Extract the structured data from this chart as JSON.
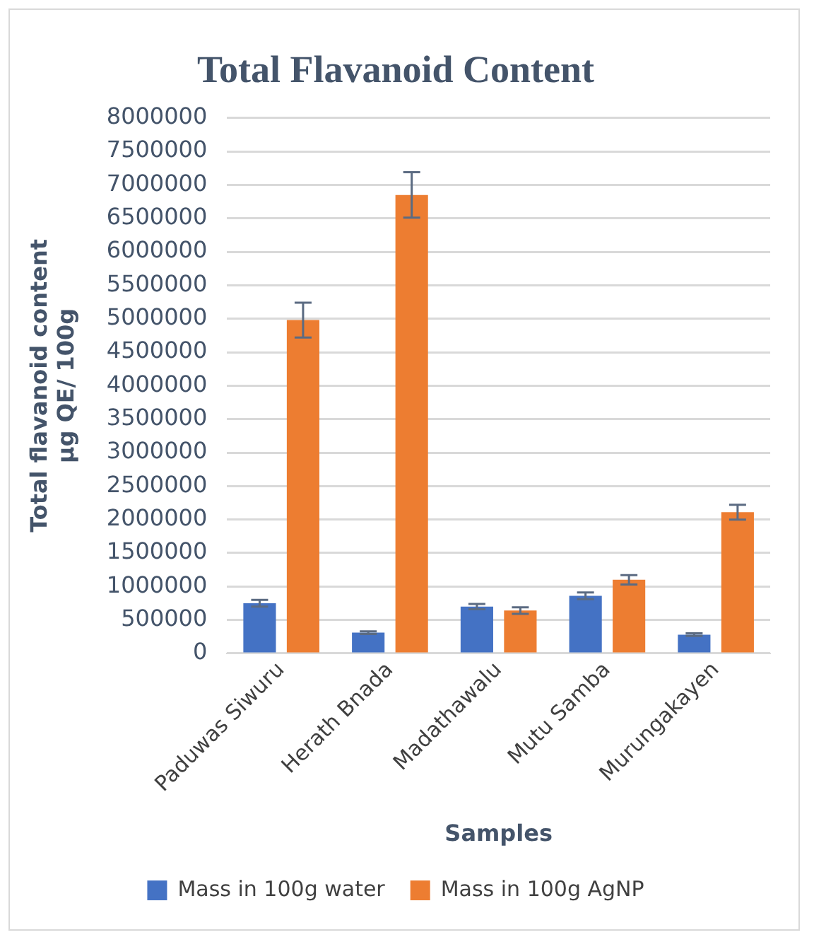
{
  "chart_data": {
    "type": "bar",
    "title": "Total Flavanoid Content",
    "xlabel": "Samples",
    "ylabel": "Total flavanoid content\nµg QE/ 100g",
    "categories": [
      "Paduwas Siwuru",
      "Herath Bnada",
      "Madathawalu",
      "Mutu Samba",
      "Murungakayen"
    ],
    "series": [
      {
        "name": "Mass in 100g water",
        "color": "#4472c4",
        "values": [
          750000,
          310000,
          700000,
          860000,
          280000
        ],
        "errors": [
          50000,
          20000,
          40000,
          50000,
          20000
        ]
      },
      {
        "name": "Mass in 100g AgNP",
        "color": "#ed7d31",
        "values": [
          4980000,
          6850000,
          640000,
          1100000,
          2110000
        ],
        "errors": [
          260000,
          340000,
          50000,
          70000,
          110000
        ]
      }
    ],
    "ylim": [
      0,
      8000000
    ],
    "yticks": [
      0,
      500000,
      1000000,
      1500000,
      2000000,
      2500000,
      3000000,
      3500000,
      4000000,
      4500000,
      5000000,
      5500000,
      6000000,
      6500000,
      7000000,
      7500000,
      8000000
    ],
    "grid": "y",
    "legend": "bottom"
  }
}
